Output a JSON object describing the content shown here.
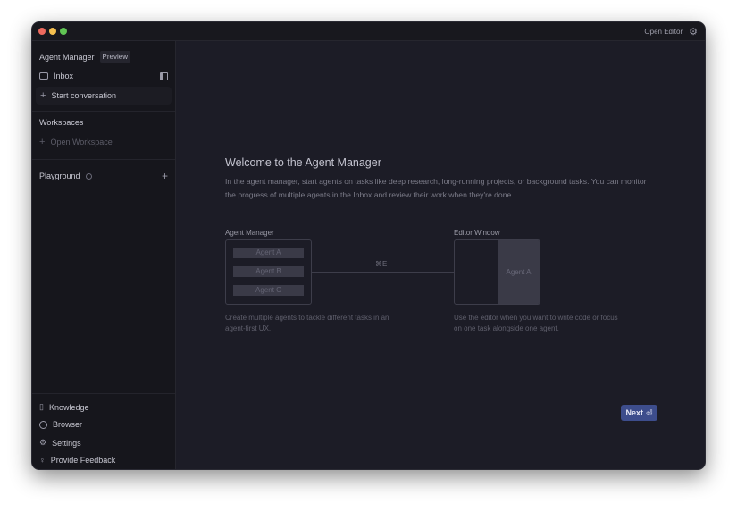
{
  "window": {
    "open_editor": "Open Editor",
    "traffic": [
      "#ed6a5e",
      "#f5bf4f",
      "#61c554"
    ]
  },
  "sidebar": {
    "title": "Agent Manager",
    "badge": "Preview",
    "inbox": "Inbox",
    "start": "Start conversation",
    "workspaces": "Workspaces",
    "open_workspace": "Open Workspace",
    "playground": "Playground",
    "bottom": [
      {
        "label": "Knowledge",
        "icon": "book-icon"
      },
      {
        "label": "Browser",
        "icon": "browser-icon"
      },
      {
        "label": "Settings",
        "icon": "gear-icon"
      },
      {
        "label": "Provide Feedback",
        "icon": "lightbulb-icon"
      }
    ]
  },
  "main": {
    "title": "Welcome to the Agent Manager",
    "desc": "In the agent manager, start agents on tasks like deep research, long-running projects, or background tasks. You can monitor the progress of multiple agents in the Inbox and review their work when they're done.",
    "left_label": "Agent Manager",
    "agents": [
      "Agent A",
      "Agent B",
      "Agent C"
    ],
    "shortcut": "⌘E",
    "right_label": "Editor Window",
    "editor_agent": "Agent A",
    "left_caption": "Create multiple agents to tackle different tasks in an agent-first UX.",
    "right_caption": "Use the editor when you want to write code or focus on one task alongside one agent.",
    "next": "Next",
    "accent": "#3d4d8c"
  }
}
